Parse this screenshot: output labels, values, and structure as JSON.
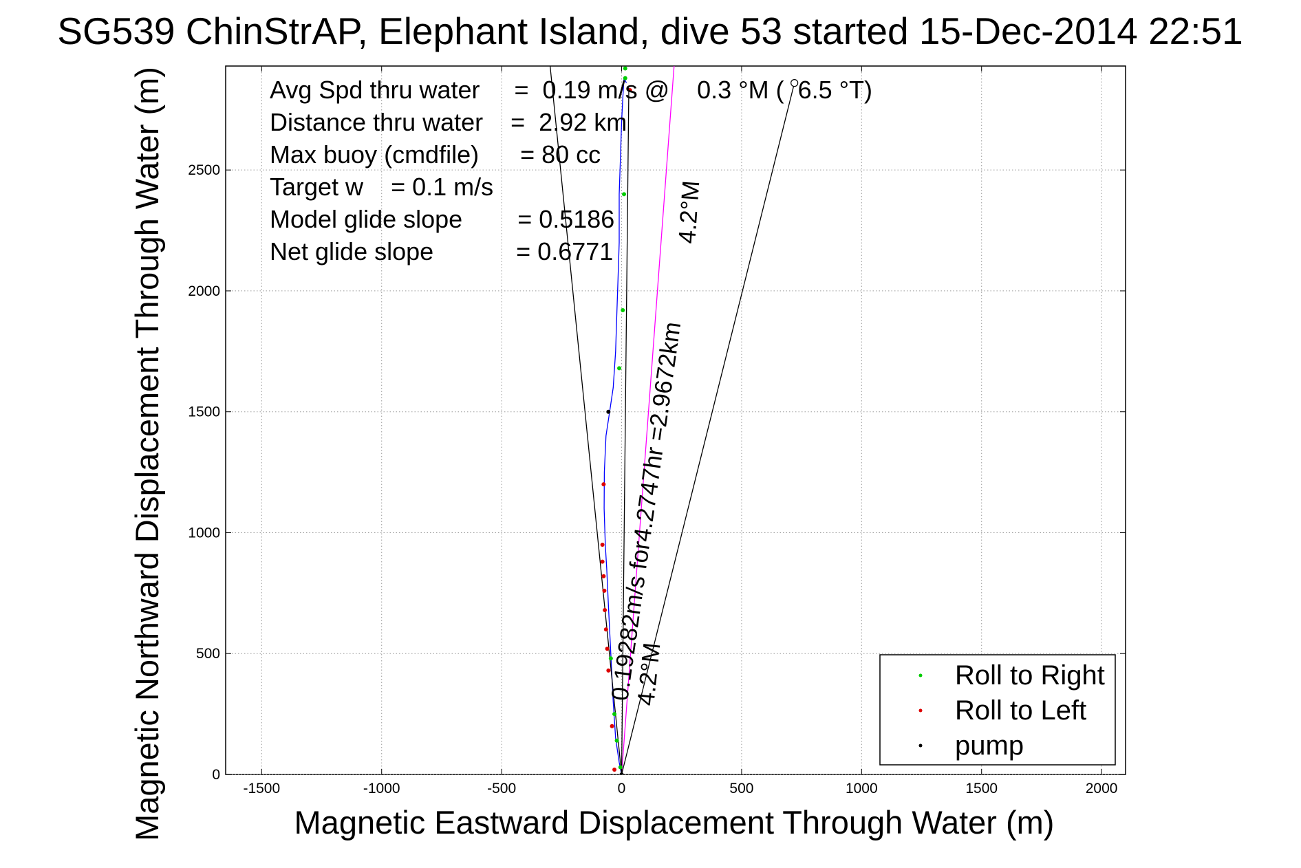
{
  "title": "SG539 ChinStrAP, Elephant Island, dive 53 started 15-Dec-2014 22:51",
  "chart_data": {
    "type": "line",
    "title": "SG539 ChinStrAP, Elephant Island, dive 53 started 15-Dec-2014 22:51",
    "xlabel": "Magnetic Eastward Displacement Through Water (m)",
    "ylabel": "Magnetic Northward Displacement Through Water (m)",
    "xlim": [
      -1650,
      2100
    ],
    "ylim": [
      0,
      2930
    ],
    "xticks": [
      -1500,
      -1000,
      -500,
      0,
      500,
      1000,
      1500,
      2000
    ],
    "yticks": [
      0,
      500,
      1000,
      1500,
      2000,
      2500
    ],
    "xtick_labels": [
      "-1500",
      "-1000",
      "-500",
      "0",
      "500",
      "1000",
      "1500",
      "2000"
    ],
    "ytick_labels": [
      "0",
      "500",
      "1000",
      "1500",
      "2000",
      "2500"
    ],
    "grid": true,
    "legend_position": "bottom-right",
    "legend": [
      {
        "label": "Roll to Right",
        "color": "#00cc00"
      },
      {
        "label": "Roll to Left",
        "color": "#dd0000"
      },
      {
        "label": "pump",
        "color": "#000000"
      }
    ],
    "annotations": [
      "Avg Spd thru water     =  0.19 m/s @    0.3 °M (  6.5 °T)",
      "Distance thru water    =  2.92 km",
      "Max buoy (cmdfile)      = 80 cc",
      "Target w    = 0.1 m/s",
      "Model glide slope        = 0.5186",
      "Net glide slope            = 0.6771"
    ],
    "track_label": "0.19282m/s for4.2747hr =2.9672km",
    "heading_labels": [
      "4.2°M",
      "4.2°M"
    ],
    "series": [
      {
        "type": "line",
        "color": "#0000ff",
        "x": [
          0,
          -10,
          -25,
          -35,
          -45,
          -55,
          -62,
          -68,
          -73,
          -72,
          -65,
          -50,
          -35,
          -25,
          -20,
          -15,
          -10,
          -10,
          -5,
          0,
          5,
          10,
          20
        ],
        "y": [
          0,
          50,
          150,
          300,
          500,
          700,
          850,
          950,
          1100,
          1250,
          1400,
          1500,
          1600,
          1750,
          1900,
          2050,
          2200,
          2400,
          2550,
          2700,
          2800,
          2880,
          2860
        ]
      },
      {
        "type": "line",
        "color": "#ff00ff",
        "x": [
          0,
          220
        ],
        "y": [
          0,
          2950
        ]
      },
      {
        "type": "line",
        "color": "#000000",
        "x": [
          0,
          -300
        ],
        "y": [
          0,
          2950
        ]
      },
      {
        "type": "line",
        "color": "#000000",
        "x": [
          0,
          720
        ],
        "y": [
          0,
          2860
        ]
      },
      {
        "type": "line",
        "color": "#000000",
        "x": [
          0,
          30
        ],
        "y": [
          0,
          2840
        ]
      },
      {
        "type": "scatter",
        "name": "Roll to Right",
        "color": "#00cc00",
        "x": [
          -5,
          -20,
          -30,
          -45,
          -10,
          5,
          10,
          15,
          15
        ],
        "y": [
          30,
          140,
          250,
          480,
          1680,
          1920,
          2400,
          2880,
          2920
        ]
      },
      {
        "type": "scatter",
        "name": "Roll to Left",
        "color": "#dd0000",
        "x": [
          -30,
          -40,
          -55,
          -60,
          -65,
          -70,
          -72,
          -75,
          -80,
          -80,
          -75,
          35
        ],
        "y": [
          20,
          200,
          430,
          520,
          600,
          680,
          760,
          820,
          880,
          950,
          1200,
          2830
        ]
      },
      {
        "type": "scatter",
        "name": "pump",
        "color": "#000000",
        "x": [
          -55,
          0
        ],
        "y": [
          1500,
          0
        ]
      }
    ]
  }
}
